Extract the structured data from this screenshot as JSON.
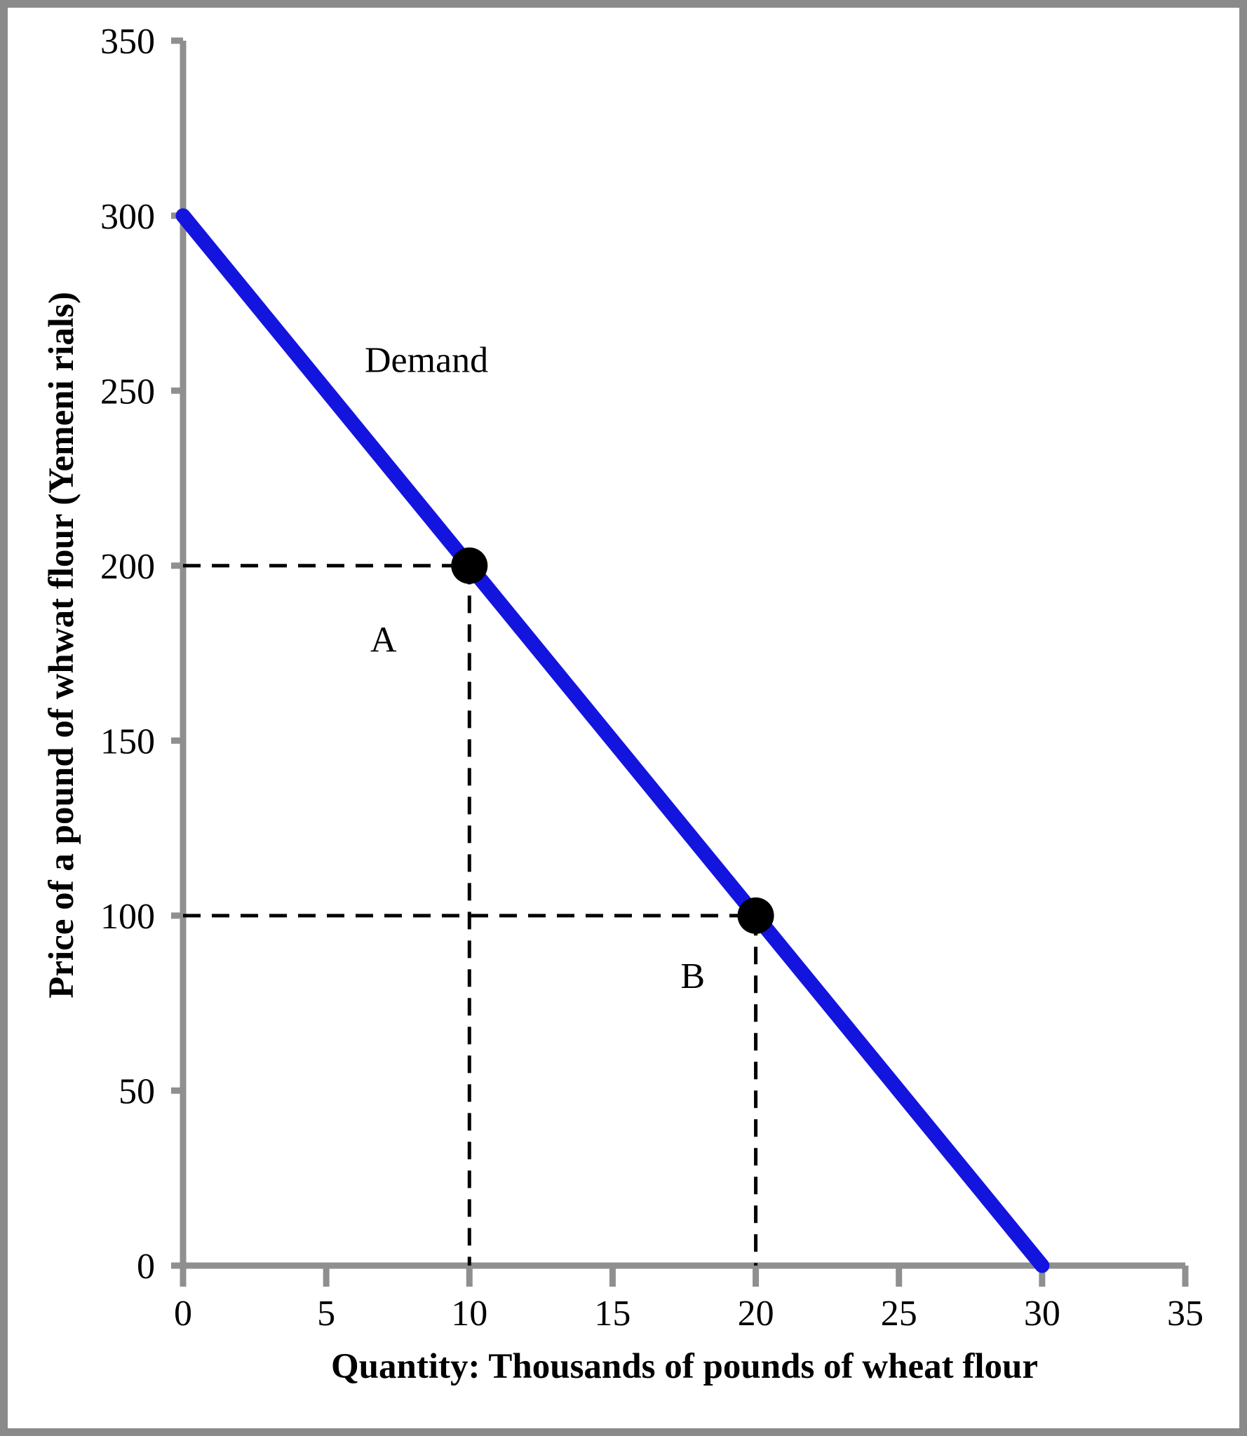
{
  "chart_data": {
    "type": "line",
    "title": "",
    "xlabel": "Quantity: Thousands of pounds of wheat flour",
    "ylabel": "Price of a pound of whwat flour (Yemeni rials)",
    "xlim": [
      0,
      35
    ],
    "ylim": [
      0,
      350
    ],
    "xticks": [
      0,
      5,
      10,
      15,
      20,
      25,
      30,
      35
    ],
    "yticks": [
      0,
      50,
      100,
      150,
      200,
      250,
      300,
      350
    ],
    "grid": false,
    "legend_position": "none",
    "series": [
      {
        "name": "Demand",
        "x": [
          0,
          30
        ],
        "y": [
          300,
          0
        ],
        "color": "#1414df",
        "label": {
          "text": "Demand",
          "x": 8.5,
          "y": 259
        }
      }
    ],
    "points": [
      {
        "label": "A",
        "x": 10,
        "y": 200,
        "label_pos": {
          "x": 7.0,
          "y": 179
        }
      },
      {
        "label": "B",
        "x": 20,
        "y": 100,
        "label_pos": {
          "x": 17.8,
          "y": 83
        }
      }
    ],
    "colors": {
      "curve": "#1414df",
      "axis": "#8f8f8f",
      "frame_border": "#8a8a8a",
      "marker": "#000000",
      "dashed_guide": "#000000",
      "text": "#000000"
    }
  }
}
